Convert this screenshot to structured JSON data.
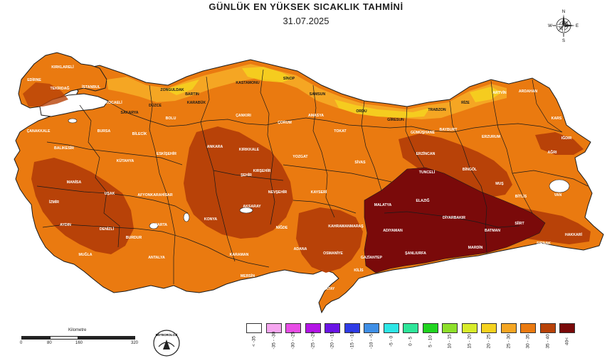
{
  "header": {
    "title": "GÜNLÜK EN YÜKSEK SICAKLIK TAHMİNİ",
    "date": "31.07.2025"
  },
  "compass": {
    "n": "N",
    "s": "S",
    "e": "E",
    "w": "W"
  },
  "scale": {
    "title": "Kilometre",
    "ticks": [
      "0",
      "80",
      "160",
      "320"
    ]
  },
  "logo": {
    "text": "METEOROLOJİ"
  },
  "legend": {
    "items": [
      {
        "label": "< -35",
        "color": "#ffffff"
      },
      {
        "label": "-35 - -30",
        "color": "#f6a6f0"
      },
      {
        "label": "-30 - -25",
        "color": "#e84de6"
      },
      {
        "label": "-25 - -20",
        "color": "#b314e6"
      },
      {
        "label": "-20 - -15",
        "color": "#6a14e6"
      },
      {
        "label": "-15 - -10",
        "color": "#2f3be6"
      },
      {
        "label": "-10 - -5",
        "color": "#3f8fe6"
      },
      {
        "label": "-5 - 0",
        "color": "#2ee6e6"
      },
      {
        "label": "0 - 5",
        "color": "#2ee69a"
      },
      {
        "label": "5 - 10",
        "color": "#20d420"
      },
      {
        "label": "10 - 15",
        "color": "#8ee02a"
      },
      {
        "label": "15 - 20",
        "color": "#d8ec2a"
      },
      {
        "label": "20 - 25",
        "color": "#f5d21f"
      },
      {
        "label": "25 - 30",
        "color": "#f5a623"
      },
      {
        "label": "30 - 35",
        "color": "#ea7a10"
      },
      {
        "label": "35 - 40",
        "color": "#b84208"
      },
      {
        "label": "40<",
        "color": "#7a0a0a"
      }
    ]
  },
  "cities": [
    {
      "name": "KIRKLARELİ",
      "tone": "light"
    },
    {
      "name": "EDİRNE",
      "tone": "light"
    },
    {
      "name": "TEKİRDAĞ",
      "tone": "light"
    },
    {
      "name": "İSTANBUL",
      "tone": "light"
    },
    {
      "name": "KOCAELİ",
      "tone": "light"
    },
    {
      "name": "SAKARYA",
      "tone": "dark"
    },
    {
      "name": "DÜZCE",
      "tone": "dark"
    },
    {
      "name": "ZONGULDAK",
      "tone": "dark"
    },
    {
      "name": "BARTIN",
      "tone": "dark"
    },
    {
      "name": "KASTAMONU",
      "tone": "dark"
    },
    {
      "name": "SİNOP",
      "tone": "dark"
    },
    {
      "name": "SAMSUN",
      "tone": "dark"
    },
    {
      "name": "ORDU",
      "tone": "dark"
    },
    {
      "name": "GİRESUN",
      "tone": "dark"
    },
    {
      "name": "TRABZON",
      "tone": "dark"
    },
    {
      "name": "RİZE",
      "tone": "dark"
    },
    {
      "name": "ARTVİN",
      "tone": "light"
    },
    {
      "name": "ARDAHAN",
      "tone": "light"
    },
    {
      "name": "KARS",
      "tone": "light"
    },
    {
      "name": "IĞDIR",
      "tone": "light"
    },
    {
      "name": "AĞRI",
      "tone": "light"
    },
    {
      "name": "ERZURUM",
      "tone": "light"
    },
    {
      "name": "BAYBURT",
      "tone": "light"
    },
    {
      "name": "GÜMÜŞHANE",
      "tone": "light"
    },
    {
      "name": "ERZİNCAN",
      "tone": "light"
    },
    {
      "name": "TUNCELİ",
      "tone": "light"
    },
    {
      "name": "BİNGÖL",
      "tone": "light"
    },
    {
      "name": "MUŞ",
      "tone": "light"
    },
    {
      "name": "BİTLİS",
      "tone": "light"
    },
    {
      "name": "VAN",
      "tone": "light"
    },
    {
      "name": "HAKKARİ",
      "tone": "light"
    },
    {
      "name": "ŞIRNAK",
      "tone": "light"
    },
    {
      "name": "SİİRT",
      "tone": "light"
    },
    {
      "name": "BATMAN",
      "tone": "light"
    },
    {
      "name": "MARDİN",
      "tone": "light"
    },
    {
      "name": "DİYARBAKIR",
      "tone": "light"
    },
    {
      "name": "ŞANLIURFA",
      "tone": "light"
    },
    {
      "name": "ADIYAMAN",
      "tone": "light"
    },
    {
      "name": "MALATYA",
      "tone": "light"
    },
    {
      "name": "ELAZIĞ",
      "tone": "light"
    },
    {
      "name": "GAZİANTEP",
      "tone": "light"
    },
    {
      "name": "KİLİS",
      "tone": "light"
    },
    {
      "name": "HATAY",
      "tone": "light"
    },
    {
      "name": "OSMANİYE",
      "tone": "light"
    },
    {
      "name": "KAHRAMANMARAŞ",
      "tone": "light"
    },
    {
      "name": "ADANA",
      "tone": "light"
    },
    {
      "name": "MERSİN",
      "tone": "light"
    },
    {
      "name": "KARAMAN",
      "tone": "light"
    },
    {
      "name": "KONYA",
      "tone": "light"
    },
    {
      "name": "ANTALYA",
      "tone": "light"
    },
    {
      "name": "ISPARTA",
      "tone": "light"
    },
    {
      "name": "BURDUR",
      "tone": "light"
    },
    {
      "name": "MUĞLA",
      "tone": "light"
    },
    {
      "name": "AYDIN",
      "tone": "light"
    },
    {
      "name": "DENİZLİ",
      "tone": "light"
    },
    {
      "name": "İZMİR",
      "tone": "light"
    },
    {
      "name": "MANİSA",
      "tone": "light"
    },
    {
      "name": "UŞAK",
      "tone": "light"
    },
    {
      "name": "AFYONKARAHİSAR",
      "tone": "light"
    },
    {
      "name": "KÜTAHYA",
      "tone": "light"
    },
    {
      "name": "BALIKESİR",
      "tone": "light"
    },
    {
      "name": "ÇANAKKALE",
      "tone": "light"
    },
    {
      "name": "BURSA",
      "tone": "light"
    },
    {
      "name": "BİLECİK",
      "tone": "light"
    },
    {
      "name": "ESKİŞEHİR",
      "tone": "light"
    },
    {
      "name": "BOLU",
      "tone": "light"
    },
    {
      "name": "KARABÜK",
      "tone": "dark"
    },
    {
      "name": "ÇANKIRI",
      "tone": "light"
    },
    {
      "name": "ANKARA",
      "tone": "light"
    },
    {
      "name": "KIRIKKALE",
      "tone": "light"
    },
    {
      "name": "KIRŞEHİR",
      "tone": "light"
    },
    {
      "name": "AKSARAY",
      "tone": "light"
    },
    {
      "name": "NEVŞEHİR",
      "tone": "light"
    },
    {
      "name": "NİĞDE",
      "tone": "light"
    },
    {
      "name": "KAYSERİ",
      "tone": "light"
    },
    {
      "name": "YOZGAT",
      "tone": "light"
    },
    {
      "name": "ÇORUM",
      "tone": "light"
    },
    {
      "name": "AMASYA",
      "tone": "light"
    },
    {
      "name": "TOKAT",
      "tone": "light"
    },
    {
      "name": "SİVAS",
      "tone": "light"
    },
    {
      "name": "ŞEHİR",
      "tone": "light"
    }
  ]
}
